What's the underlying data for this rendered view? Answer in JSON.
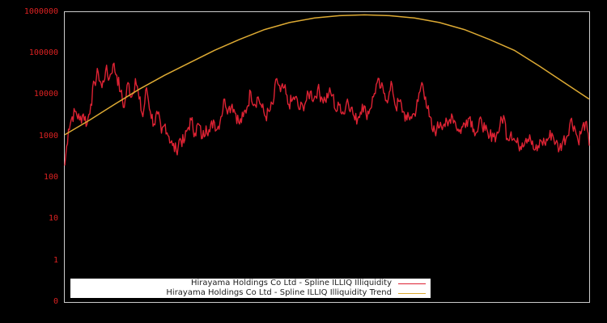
{
  "chart_data": {
    "type": "line",
    "title": "",
    "xlabel": "",
    "ylabel": "",
    "yscale": "log",
    "y_ticks": [
      "0",
      "1",
      "10",
      "100",
      "1000",
      "10000",
      "100000",
      "1000000"
    ],
    "ylim": [
      0,
      1000000
    ],
    "grid": false,
    "legend_position": "bottom-left",
    "series": [
      {
        "name": "Hirayama Holdings Co Ltd - Spline ILLIQ Illiquidity",
        "color": "#dd2233",
        "values": [
          200,
          1500,
          3000,
          4000,
          2500,
          3500,
          2000,
          6000,
          20000,
          35000,
          15000,
          40000,
          25000,
          55000,
          30000,
          12000,
          5000,
          20000,
          9000,
          25000,
          8000,
          3000,
          15000,
          4000,
          2000,
          3500,
          1200,
          2000,
          1000,
          600,
          450,
          900,
          700,
          1500,
          2500,
          1200,
          2000,
          900,
          1800,
          1300,
          2500,
          1500,
          3000,
          8000,
          4500,
          6000,
          3500,
          2000,
          3000,
          5000,
          12000,
          6000,
          9000,
          5000,
          3000,
          4000,
          6000,
          25000,
          12000,
          15000,
          6000,
          7000,
          9000,
          4500,
          5500,
          7500,
          12000,
          8000,
          14000,
          9000,
          7500,
          11000,
          10000,
          4000,
          6000,
          3500,
          8000,
          5000,
          2500,
          3000,
          6000,
          3500,
          4500,
          9000,
          20000,
          15000,
          11000,
          8000,
          18000,
          5000,
          7000,
          4000,
          2500,
          3000,
          3500,
          7000,
          20000,
          9000,
          3000,
          1300,
          1500,
          2200,
          2000,
          1800,
          3500,
          2200,
          1300,
          1700,
          2500,
          3000,
          1500,
          1300,
          2600,
          1400,
          900,
          1200,
          1000,
          1800,
          3200,
          900,
          1300,
          800,
          600,
          700,
          900,
          1100,
          500,
          450,
          800,
          700,
          900,
          1200,
          700,
          500,
          800,
          1000,
          2500,
          1800,
          800,
          1400,
          2200,
          600
        ]
      },
      {
        "name": "Hirayama Holdings Co Ltd - Spline ILLIQ Illiquidity Trend",
        "color": "#ddaa33",
        "values": [
          1100,
          2500,
          6000,
          14000,
          30000,
          60000,
          120000,
          220000,
          380000,
          560000,
          720000,
          820000,
          860000,
          820000,
          720000,
          560000,
          380000,
          220000,
          120000,
          50000,
          20000,
          8000
        ]
      }
    ]
  },
  "legend": {
    "items": [
      {
        "label": "Hirayama Holdings Co Ltd - Spline ILLIQ Illiquidity",
        "color": "#dd2233"
      },
      {
        "label": "Hirayama Holdings Co Ltd - Spline ILLIQ Illiquidity Trend",
        "color": "#ddaa33"
      }
    ]
  },
  "colors": {
    "background": "#000000",
    "axis": "#cccccc",
    "tick_label": "#dd2222"
  }
}
